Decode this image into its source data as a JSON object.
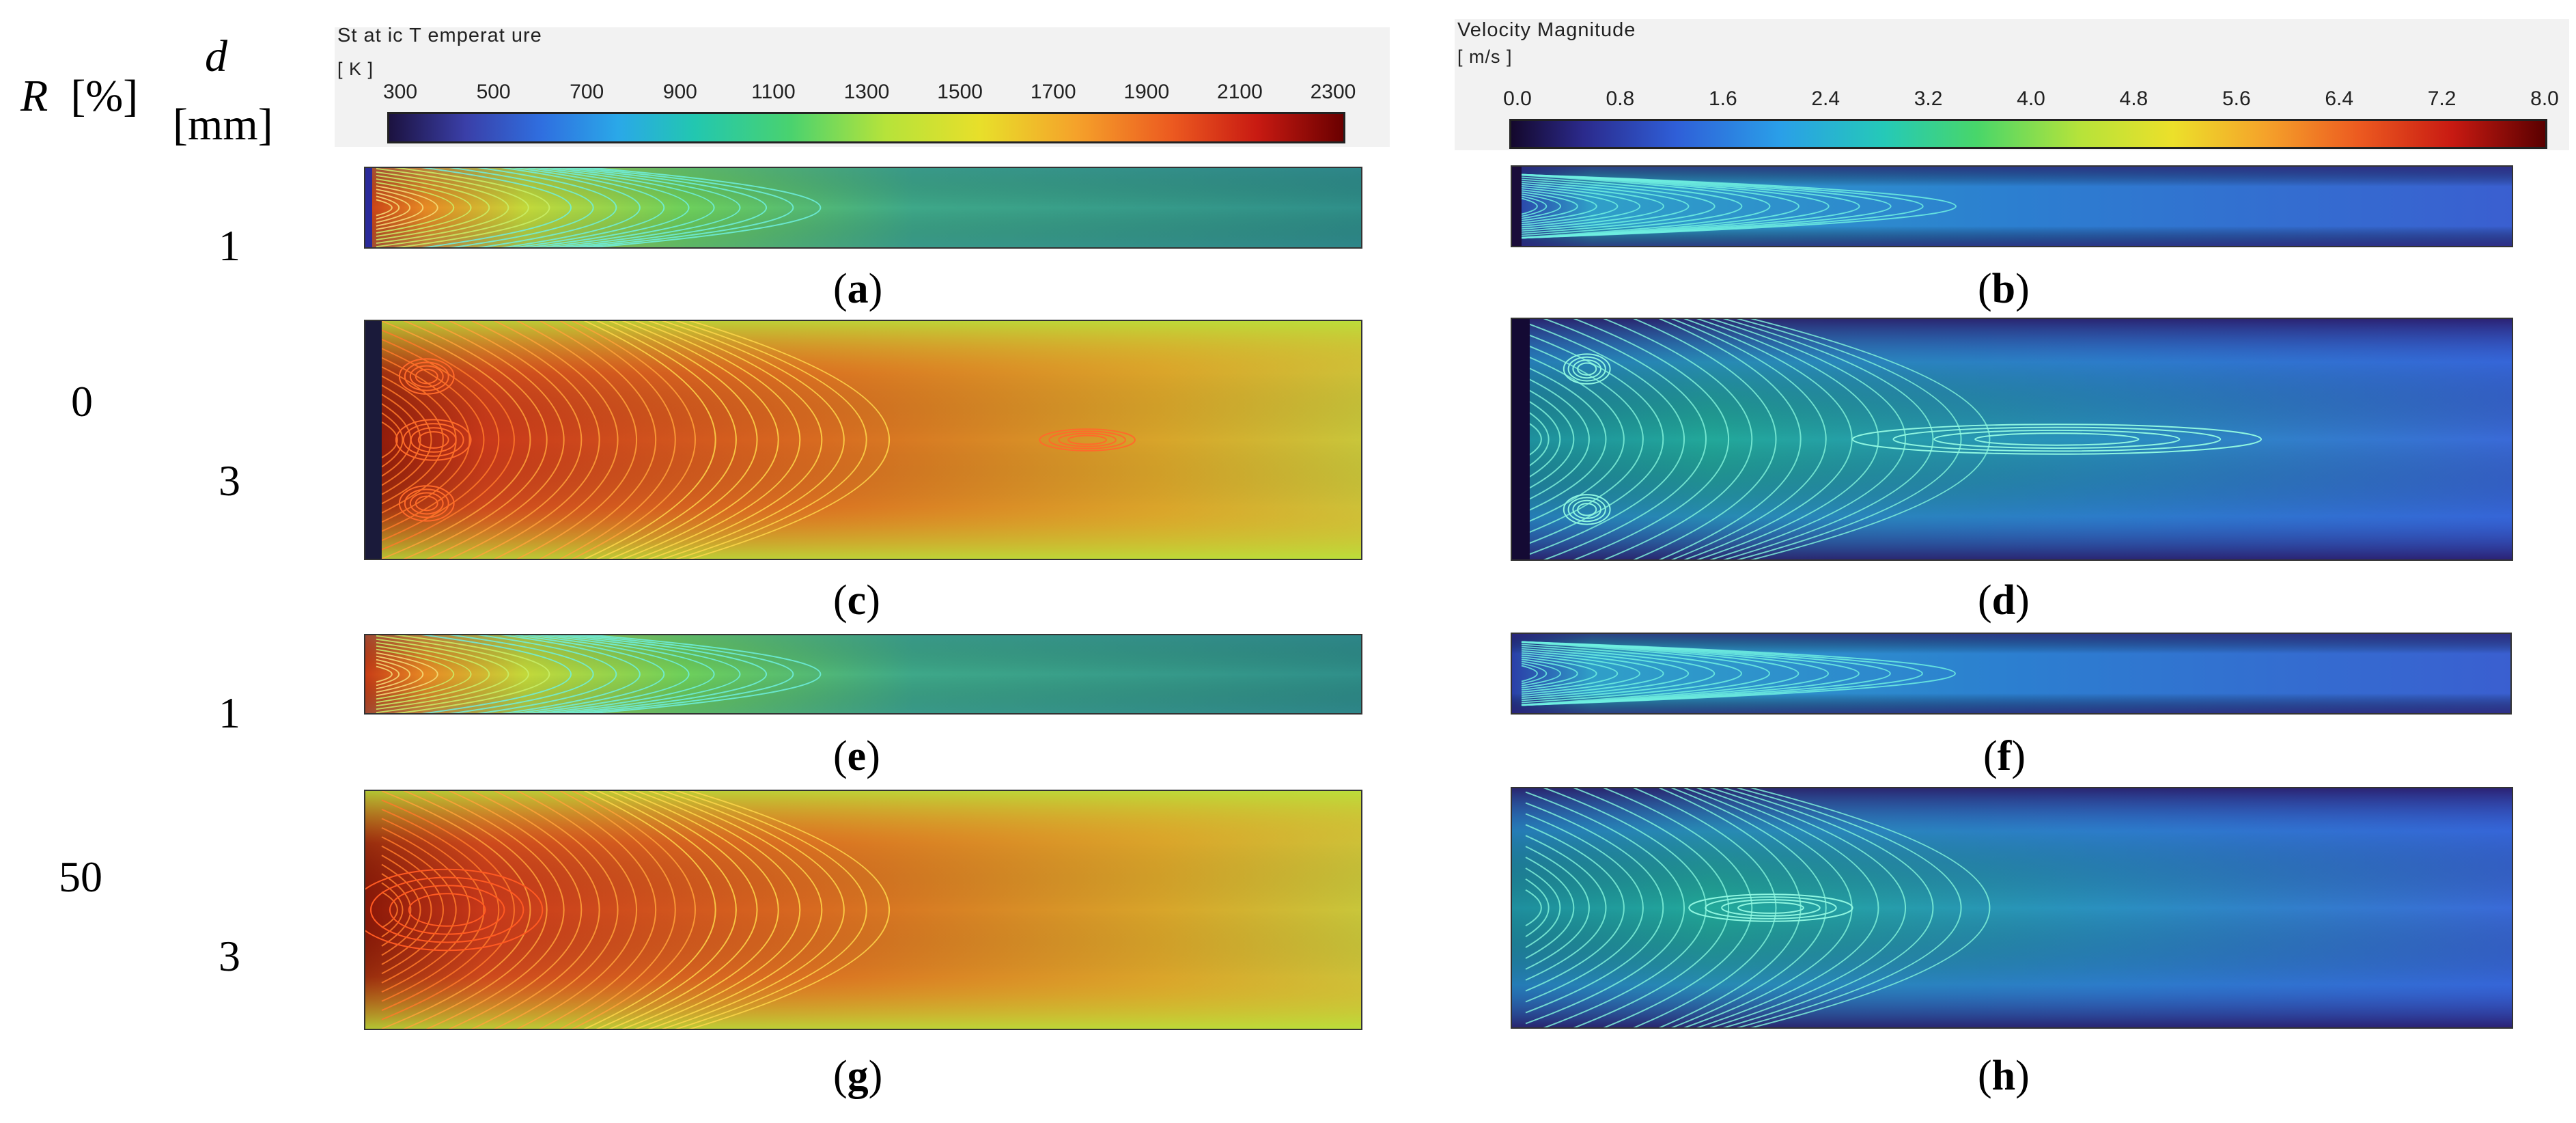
{
  "headers": {
    "r_symbol": "R",
    "r_unit": "[%]",
    "d_symbol": "d",
    "d_unit": "[mm]"
  },
  "rows": {
    "r0": "0",
    "r50": "50",
    "d_a": "1",
    "d_c": "3",
    "d_e": "1",
    "d_g": "3"
  },
  "temperature_colorbar": {
    "title": "St at ic T emperat ure",
    "unit": "[ K ]",
    "ticks": [
      "300",
      "500",
      "700",
      "900",
      "1100",
      "1300",
      "1500",
      "1700",
      "1900",
      "2100",
      "2300"
    ]
  },
  "velocity_colorbar": {
    "title": "Velocity Magnitude",
    "unit": "[ m/s ]",
    "ticks": [
      "0.0",
      "0.8",
      "1.6",
      "2.4",
      "3.2",
      "4.0",
      "4.8",
      "5.6",
      "6.4",
      "7.2",
      "8.0"
    ]
  },
  "subfigures": {
    "a": "a",
    "b": "b",
    "c": "c",
    "d": "d",
    "e": "e",
    "f": "f",
    "g": "g",
    "h": "h"
  },
  "colors": {
    "temp_low": "#2a1a5e",
    "temp_high": "#7a0000",
    "vel_low": "#1a1040",
    "vel_high": "#7a0000",
    "teal_field": "#2f8f8a",
    "orange_field": "#d4541a",
    "blue_field": "#3a6ad8"
  }
}
